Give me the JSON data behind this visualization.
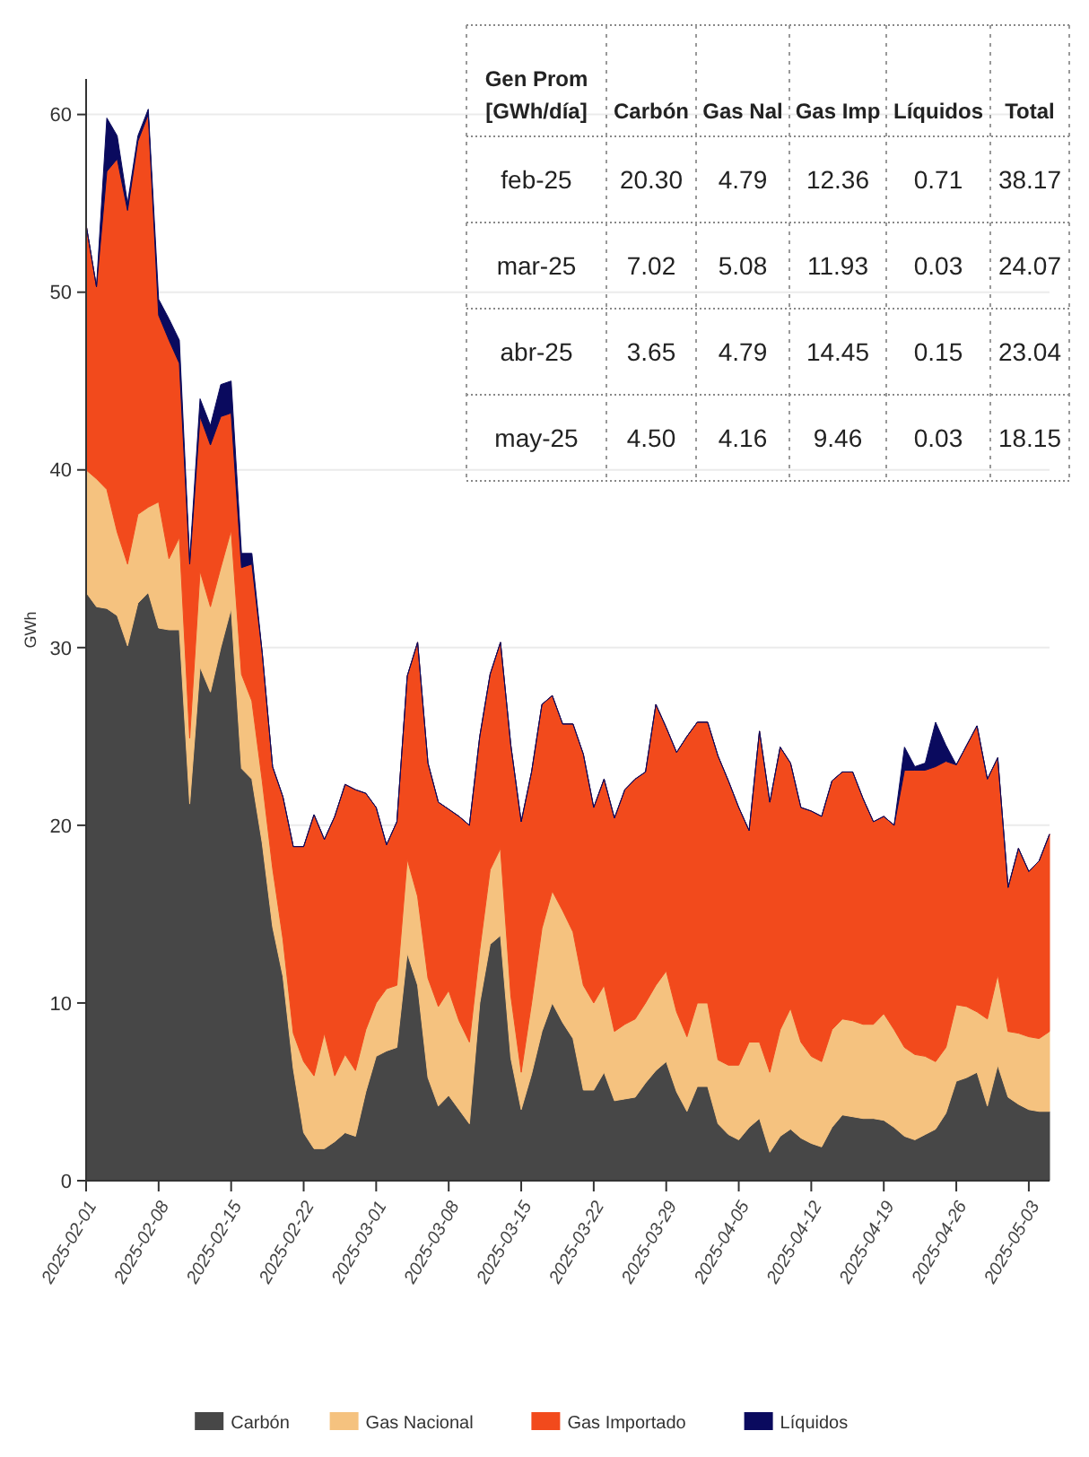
{
  "chart_data": {
    "type": "area",
    "stacked": true,
    "ylabel": "GWh",
    "x": [
      "2025-02-01",
      "2025-02-02",
      "2025-02-03",
      "2025-02-04",
      "2025-02-05",
      "2025-02-06",
      "2025-02-07",
      "2025-02-08",
      "2025-02-09",
      "2025-02-10",
      "2025-02-11",
      "2025-02-12",
      "2025-02-13",
      "2025-02-14",
      "2025-02-15",
      "2025-02-16",
      "2025-02-17",
      "2025-02-18",
      "2025-02-19",
      "2025-02-20",
      "2025-02-21",
      "2025-02-22",
      "2025-02-23",
      "2025-02-24",
      "2025-02-25",
      "2025-02-26",
      "2025-02-27",
      "2025-02-28",
      "2025-03-01",
      "2025-03-02",
      "2025-03-03",
      "2025-03-04",
      "2025-03-05",
      "2025-03-06",
      "2025-03-07",
      "2025-03-08",
      "2025-03-09",
      "2025-03-10",
      "2025-03-11",
      "2025-03-12",
      "2025-03-13",
      "2025-03-14",
      "2025-03-15",
      "2025-03-16",
      "2025-03-17",
      "2025-03-18",
      "2025-03-19",
      "2025-03-20",
      "2025-03-21",
      "2025-03-22",
      "2025-03-23",
      "2025-03-24",
      "2025-03-25",
      "2025-03-26",
      "2025-03-27",
      "2025-03-28",
      "2025-03-29",
      "2025-03-30",
      "2025-03-31",
      "2025-04-01",
      "2025-04-02",
      "2025-04-03",
      "2025-04-04",
      "2025-04-05",
      "2025-04-06",
      "2025-04-07",
      "2025-04-08",
      "2025-04-09",
      "2025-04-10",
      "2025-04-11",
      "2025-04-12",
      "2025-04-13",
      "2025-04-14",
      "2025-04-15",
      "2025-04-16",
      "2025-04-17",
      "2025-04-18",
      "2025-04-19",
      "2025-04-20",
      "2025-04-21",
      "2025-04-22",
      "2025-04-23",
      "2025-04-24",
      "2025-04-25",
      "2025-04-26",
      "2025-04-27",
      "2025-04-28",
      "2025-04-29",
      "2025-04-30",
      "2025-05-01",
      "2025-05-02",
      "2025-05-03",
      "2025-05-04",
      "2025-05-05"
    ],
    "series": [
      {
        "name": "Carbón",
        "color": "#474747",
        "values": [
          33.1,
          32.3,
          32.2,
          31.8,
          30.1,
          32.5,
          33.1,
          31.1,
          31.0,
          31.0,
          21.2,
          28.9,
          27.5,
          30.0,
          32.2,
          23.2,
          22.6,
          19.0,
          14.3,
          11.5,
          6.3,
          2.7,
          1.8,
          1.8,
          2.2,
          2.7,
          2.5,
          5.0,
          7.0,
          7.3,
          7.5,
          12.8,
          11.0,
          5.8,
          4.2,
          4.8,
          4.0,
          3.2,
          10.0,
          13.3,
          13.8,
          6.9,
          4.0,
          6.0,
          8.4,
          10.0,
          8.9,
          8.0,
          5.1,
          5.1,
          6.1,
          4.5,
          4.6,
          4.7,
          5.5,
          6.2,
          6.7,
          5.0,
          3.9,
          5.3,
          5.3,
          3.2,
          2.6,
          2.3,
          3.0,
          3.5,
          1.6,
          2.5,
          2.9,
          2.4,
          2.1,
          1.9,
          3.0,
          3.7,
          3.6,
          3.5,
          3.5,
          3.4,
          3.0,
          2.5,
          2.3,
          2.6,
          2.9,
          3.8,
          5.6,
          5.8,
          6.1,
          4.2,
          6.5,
          4.7,
          4.3,
          4.0,
          3.9,
          3.9
        ]
      },
      {
        "name": "Gas Nacional",
        "color": "#f5c27f",
        "values": [
          6.9,
          7.2,
          6.7,
          4.7,
          4.6,
          5.0,
          4.8,
          7.1,
          4.0,
          5.2,
          3.7,
          5.4,
          4.8,
          4.5,
          4.4,
          5.3,
          4.4,
          3.5,
          3.3,
          2.1,
          2.0,
          4.0,
          4.1,
          6.5,
          3.7,
          4.4,
          3.7,
          3.5,
          3.0,
          3.5,
          3.5,
          5.3,
          5.0,
          5.6,
          5.6,
          5.9,
          5.0,
          4.6,
          3.0,
          4.2,
          4.9,
          3.5,
          2.1,
          4.0,
          5.8,
          6.3,
          6.3,
          6.0,
          5.9,
          4.9,
          4.9,
          3.9,
          4.2,
          4.4,
          4.5,
          4.8,
          5.1,
          4.5,
          4.2,
          4.7,
          4.7,
          3.6,
          3.9,
          4.2,
          4.8,
          4.3,
          4.5,
          6.0,
          6.8,
          5.4,
          4.9,
          4.8,
          5.5,
          5.4,
          5.4,
          5.3,
          5.3,
          6.0,
          5.5,
          5.0,
          4.8,
          4.4,
          3.8,
          3.7,
          4.3,
          4.0,
          3.4,
          4.9,
          5.1,
          3.7,
          4.0,
          4.1,
          4.1,
          4.5
        ]
      },
      {
        "name": "Gas Importado",
        "color": "#f24a1c",
        "values": [
          13.8,
          10.8,
          17.9,
          21.0,
          19.9,
          21.0,
          22.1,
          10.5,
          12.3,
          9.8,
          9.8,
          8.7,
          9.1,
          8.5,
          6.6,
          6.0,
          7.7,
          7.2,
          5.7,
          8.0,
          10.5,
          12.1,
          14.7,
          10.9,
          14.6,
          15.2,
          15.8,
          13.3,
          11.0,
          8.1,
          9.2,
          10.3,
          14.3,
          12.1,
          11.5,
          10.2,
          11.5,
          12.2,
          12.0,
          11.0,
          11.6,
          14.1,
          14.1,
          13.0,
          12.6,
          11.0,
          10.5,
          11.7,
          13.0,
          11.0,
          11.6,
          12.0,
          13.2,
          13.5,
          13.0,
          15.8,
          13.7,
          14.6,
          16.9,
          15.8,
          15.8,
          17.1,
          16.0,
          14.5,
          11.9,
          17.5,
          15.2,
          15.9,
          13.8,
          13.2,
          13.8,
          13.8,
          14.0,
          13.9,
          14.0,
          12.7,
          11.4,
          11.1,
          11.5,
          15.6,
          16.0,
          16.1,
          16.6,
          16.1,
          13.5,
          14.7,
          16.1,
          13.5,
          12.2,
          8.1,
          10.4,
          9.3,
          10.0,
          11.1
        ]
      },
      {
        "name": "Líquidos",
        "color": "#0a0a5e",
        "values": [
          0,
          0,
          3.0,
          1.3,
          0.4,
          0.3,
          0.3,
          0.9,
          1.2,
          1.3,
          0.2,
          1.0,
          1.1,
          1.8,
          1.8,
          0.8,
          0.6,
          0,
          0,
          0,
          0,
          0,
          0,
          0,
          0,
          0,
          0,
          0,
          0,
          0,
          0,
          0,
          0,
          0,
          0,
          0,
          0,
          0,
          0,
          0,
          0,
          0,
          0,
          0,
          0,
          0,
          0,
          0,
          0,
          0,
          0,
          0,
          0,
          0,
          0,
          0,
          0,
          0,
          0,
          0,
          0,
          0,
          0,
          0,
          0,
          0,
          0,
          0,
          0,
          0,
          0,
          0,
          0,
          0,
          0,
          0,
          0,
          0,
          0,
          1.3,
          0.2,
          0.4,
          2.5,
          0.9,
          0,
          0,
          0,
          0,
          0,
          0,
          0,
          0,
          0,
          0
        ]
      }
    ],
    "xlim": [
      "2025-02-01",
      "2025-05-05"
    ],
    "xticks": [
      "2025-02-01",
      "2025-02-08",
      "2025-02-15",
      "2025-02-22",
      "2025-03-01",
      "2025-03-08",
      "2025-03-15",
      "2025-03-22",
      "2025-03-29",
      "2025-04-05",
      "2025-04-12",
      "2025-04-19",
      "2025-04-26",
      "2025-05-03"
    ],
    "ylim": [
      0,
      62
    ],
    "yticks": [
      0,
      10,
      20,
      30,
      40,
      50,
      60
    ],
    "grid": "y",
    "legend": "bottom",
    "annotations": [
      "Gen Prom [GWh/día]",
      "Carbón",
      "Gas Nal",
      "Gas Imp",
      "Líquidos",
      "Total",
      "feb-25",
      "20.30",
      "4.79",
      "12.36",
      "0.71",
      "38.17",
      "mar-25",
      "7.02",
      "5.08",
      "11.93",
      "0.03",
      "24.07",
      "abr-25",
      "3.65",
      "4.79",
      "14.45",
      "0.15",
      "23.04",
      "may-25",
      "4.50",
      "4.16",
      "9.46",
      "0.03",
      "18.15"
    ]
  }
}
